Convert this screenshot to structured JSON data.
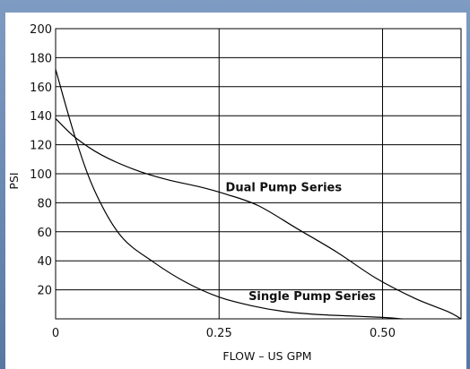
{
  "chart_data": {
    "type": "line",
    "title": "",
    "xlabel": "FLOW – US GPM",
    "ylabel": "PSI",
    "xlim": [
      0,
      0.62
    ],
    "ylim": [
      0,
      200
    ],
    "x_ticks": [
      {
        "value": 0,
        "label": "0"
      },
      {
        "value": 0.25,
        "label": "0.25"
      },
      {
        "value": 0.5,
        "label": "0.50"
      }
    ],
    "y_ticks": [
      {
        "value": 20,
        "label": "20"
      },
      {
        "value": 40,
        "label": "40"
      },
      {
        "value": 60,
        "label": "60"
      },
      {
        "value": 80,
        "label": "80"
      },
      {
        "value": 100,
        "label": "100"
      },
      {
        "value": 120,
        "label": "120"
      },
      {
        "value": 140,
        "label": "140"
      },
      {
        "value": 160,
        "label": "160"
      },
      {
        "value": 180,
        "label": "180"
      },
      {
        "value": 200,
        "label": "200"
      }
    ],
    "grid": true,
    "legend": "none",
    "series": [
      {
        "name": "Dual Pump Series",
        "color": "#000000",
        "x": [
          0,
          0.03,
          0.07,
          0.12,
          0.17,
          0.22,
          0.26,
          0.31,
          0.37,
          0.43,
          0.49,
          0.55,
          0.6,
          0.62
        ],
        "y": [
          138,
          125,
          113,
          103,
          96,
          91,
          86,
          78,
          62,
          46,
          28,
          14,
          5,
          0
        ]
      },
      {
        "name": "Single Pump Series",
        "color": "#000000",
        "x": [
          0,
          0.03,
          0.06,
          0.1,
          0.15,
          0.2,
          0.25,
          0.3,
          0.35,
          0.4,
          0.45,
          0.5,
          0.53
        ],
        "y": [
          172,
          125,
          88,
          57,
          39,
          25,
          15,
          9,
          5,
          3,
          2,
          1,
          0
        ]
      }
    ],
    "annotations": [
      {
        "text": "Dual Pump Series",
        "x": 0.26,
        "y": 88
      },
      {
        "text": "Single Pump Series",
        "x": 0.295,
        "y": 13
      }
    ]
  }
}
